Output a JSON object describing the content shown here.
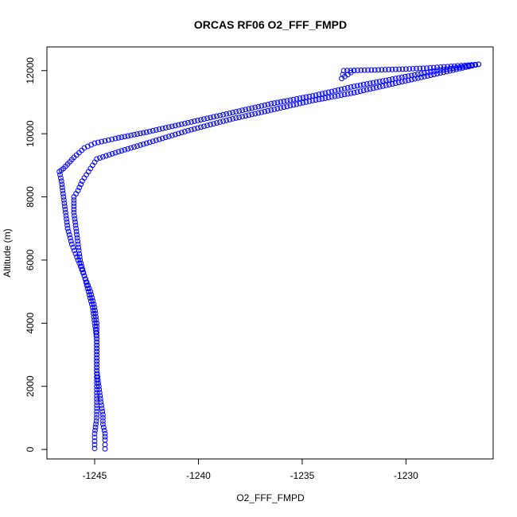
{
  "chart_data": {
    "type": "scatter",
    "title": "ORCAS RF06 O2_FFF_FMPD",
    "xlabel": "O2_FFF_FMPD",
    "ylabel": "Altitude (m)",
    "xlim": [
      -1247.3,
      -1225.8
    ],
    "ylim": [
      -300,
      12750
    ],
    "xticks": [
      -1245,
      -1240,
      -1235,
      -1230
    ],
    "yticks": [
      0,
      2000,
      4000,
      6000,
      8000,
      10000,
      12000
    ],
    "grid": false,
    "marker": "open-circle",
    "color": "#0000ff",
    "series": [
      {
        "points": [
          [
            -1244.5,
            20
          ],
          [
            -1244.5,
            150
          ],
          [
            -1244.5,
            300
          ],
          [
            -1244.5,
            500
          ],
          [
            -1244.6,
            800
          ],
          [
            -1244.6,
            1100
          ],
          [
            -1244.7,
            1500
          ],
          [
            -1244.8,
            2000
          ],
          [
            -1244.9,
            2500
          ],
          [
            -1244.9,
            3000
          ],
          [
            -1244.9,
            3500
          ],
          [
            -1245.0,
            4000
          ],
          [
            -1245.1,
            4500
          ],
          [
            -1245.3,
            5000
          ],
          [
            -1245.5,
            5500
          ],
          [
            -1245.7,
            6000
          ],
          [
            -1245.8,
            6500
          ],
          [
            -1245.9,
            7000
          ],
          [
            -1246.0,
            7500
          ],
          [
            -1246.0,
            8000
          ],
          [
            -1245.8,
            8200
          ],
          [
            -1245.6,
            8500
          ],
          [
            -1245.3,
            8800
          ],
          [
            -1245.1,
            9000
          ],
          [
            -1244.9,
            9200
          ],
          [
            -1244.0,
            9400
          ],
          [
            -1242.5,
            9700
          ],
          [
            -1240.5,
            10100
          ],
          [
            -1238.5,
            10450
          ],
          [
            -1236.5,
            10750
          ],
          [
            -1234.5,
            11050
          ],
          [
            -1232.5,
            11300
          ],
          [
            -1230.5,
            11600
          ],
          [
            -1228.5,
            11900
          ],
          [
            -1226.5,
            12200
          ],
          [
            -1227.5,
            12150
          ],
          [
            -1229.0,
            12080
          ],
          [
            -1230.0,
            12050
          ],
          [
            -1231.5,
            12020
          ],
          [
            -1233.0,
            12000
          ],
          [
            -1233.1,
            11750
          ],
          [
            -1232.5,
            12000
          ]
        ]
      },
      {
        "points": [
          [
            -1226.5,
            12200
          ],
          [
            -1228.5,
            12000
          ],
          [
            -1230.5,
            11750
          ],
          [
            -1232.5,
            11500
          ],
          [
            -1234.5,
            11200
          ],
          [
            -1236.5,
            10950
          ],
          [
            -1238.5,
            10650
          ],
          [
            -1240.5,
            10350
          ],
          [
            -1242.5,
            10050
          ],
          [
            -1244.0,
            9850
          ],
          [
            -1245.0,
            9700
          ],
          [
            -1245.5,
            9550
          ],
          [
            -1246.0,
            9250
          ],
          [
            -1246.5,
            8900
          ],
          [
            -1246.7,
            8800
          ],
          [
            -1246.6,
            8500
          ],
          [
            -1246.5,
            8000
          ],
          [
            -1246.4,
            7500
          ],
          [
            -1246.3,
            7000
          ],
          [
            -1246.1,
            6500
          ],
          [
            -1245.8,
            6000
          ],
          [
            -1245.5,
            5500
          ],
          [
            -1245.2,
            5000
          ],
          [
            -1245.0,
            4500
          ],
          [
            -1244.9,
            4000
          ],
          [
            -1244.9,
            3500
          ],
          [
            -1244.9,
            3000
          ],
          [
            -1244.9,
            2500
          ],
          [
            -1244.9,
            2000
          ],
          [
            -1244.9,
            1500
          ],
          [
            -1244.9,
            1000
          ],
          [
            -1245.0,
            500
          ],
          [
            -1245.0,
            150
          ],
          [
            -1245.0,
            30
          ]
        ]
      }
    ]
  }
}
